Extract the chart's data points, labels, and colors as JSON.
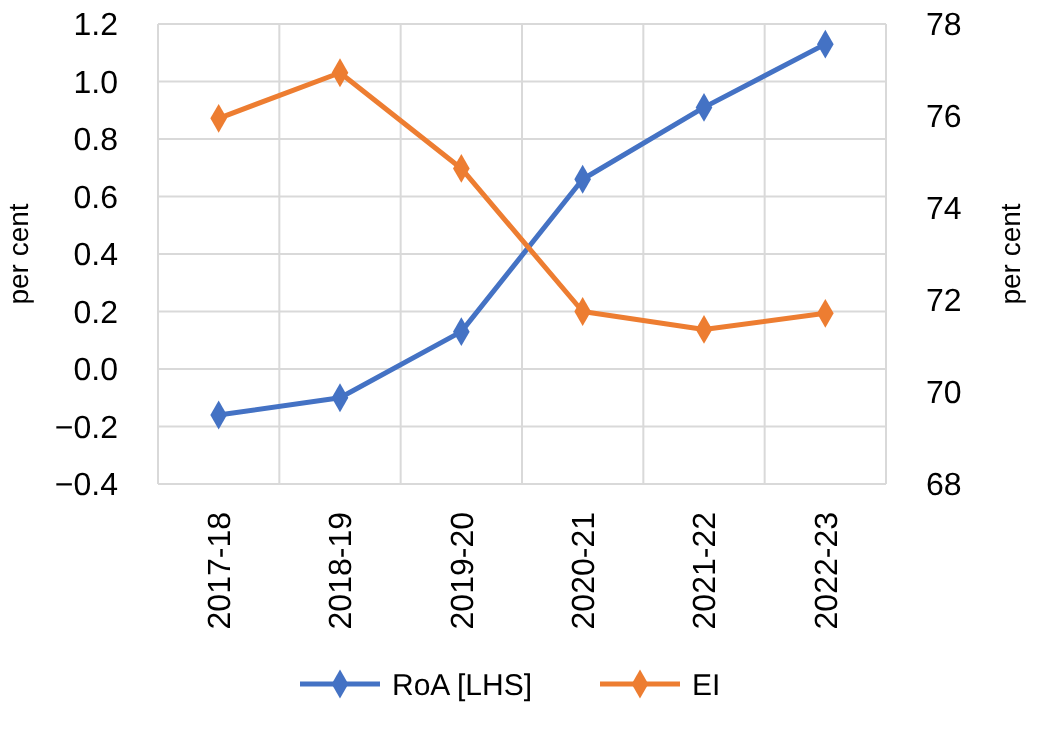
{
  "chart_data": {
    "type": "line",
    "categories": [
      "2017-18",
      "2018-19",
      "2019-20",
      "2020-21",
      "2021-22",
      "2022-23"
    ],
    "series": [
      {
        "name": "RoA [LHS]",
        "color": "#4472c4",
        "values": [
          -0.16,
          -0.1,
          0.13,
          0.66,
          0.91,
          1.13
        ]
      },
      {
        "name": "EI",
        "color": "#ed7d31",
        "axis": "y2",
        "values": [
          75.95,
          76.94,
          74.86,
          71.75,
          71.36,
          71.71
        ]
      }
    ],
    "ylabel": "per cent",
    "y2label": "per cent",
    "ylim": [
      -0.4,
      1.2
    ],
    "yticks": [
      {
        "value": -0.4,
        "label": "−0.4"
      },
      {
        "value": -0.2,
        "label": "−0.2"
      },
      "0.0",
      "0.2",
      "0.4",
      "0.6",
      "0.8",
      "1.0",
      "1.2"
    ],
    "y2lim": [
      68,
      78
    ],
    "y2ticks": [
      68,
      70,
      72,
      74,
      76,
      78
    ],
    "grid": true,
    "legend": "bottom",
    "marker": "diamond",
    "line_style": "solid"
  }
}
